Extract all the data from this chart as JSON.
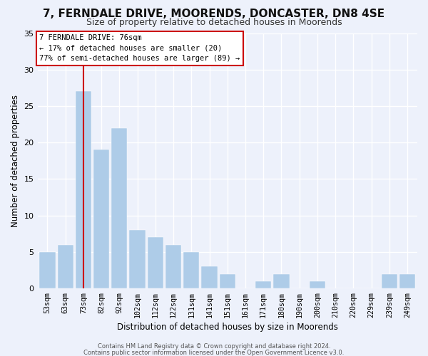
{
  "title": "7, FERNDALE DRIVE, MOORENDS, DONCASTER, DN8 4SE",
  "subtitle": "Size of property relative to detached houses in Moorends",
  "xlabel": "Distribution of detached houses by size in Moorends",
  "ylabel": "Number of detached properties",
  "bar_labels": [
    "53sqm",
    "63sqm",
    "73sqm",
    "82sqm",
    "92sqm",
    "102sqm",
    "112sqm",
    "122sqm",
    "131sqm",
    "141sqm",
    "151sqm",
    "161sqm",
    "171sqm",
    "180sqm",
    "190sqm",
    "200sqm",
    "210sqm",
    "220sqm",
    "229sqm",
    "239sqm",
    "249sqm"
  ],
  "bar_values": [
    5,
    6,
    27,
    19,
    22,
    8,
    7,
    6,
    5,
    3,
    2,
    0,
    1,
    2,
    0,
    1,
    0,
    0,
    0,
    2,
    2
  ],
  "bar_color": "#aecce8",
  "ref_line_index": 2,
  "ref_line_color": "#cc0000",
  "ann_title": "7 FERNDALE DRIVE: 76sqm",
  "ann_line1": "← 17% of detached houses are smaller (20)",
  "ann_line2": "77% of semi-detached houses are larger (89) →",
  "ylim": [
    0,
    35
  ],
  "yticks": [
    0,
    5,
    10,
    15,
    20,
    25,
    30,
    35
  ],
  "footer1": "Contains HM Land Registry data © Crown copyright and database right 2024.",
  "footer2": "Contains public sector information licensed under the Open Government Licence v3.0.",
  "bg_color": "#edf1fb",
  "grid_color": "#ffffff",
  "title_fontsize": 11,
  "subtitle_fontsize": 9
}
